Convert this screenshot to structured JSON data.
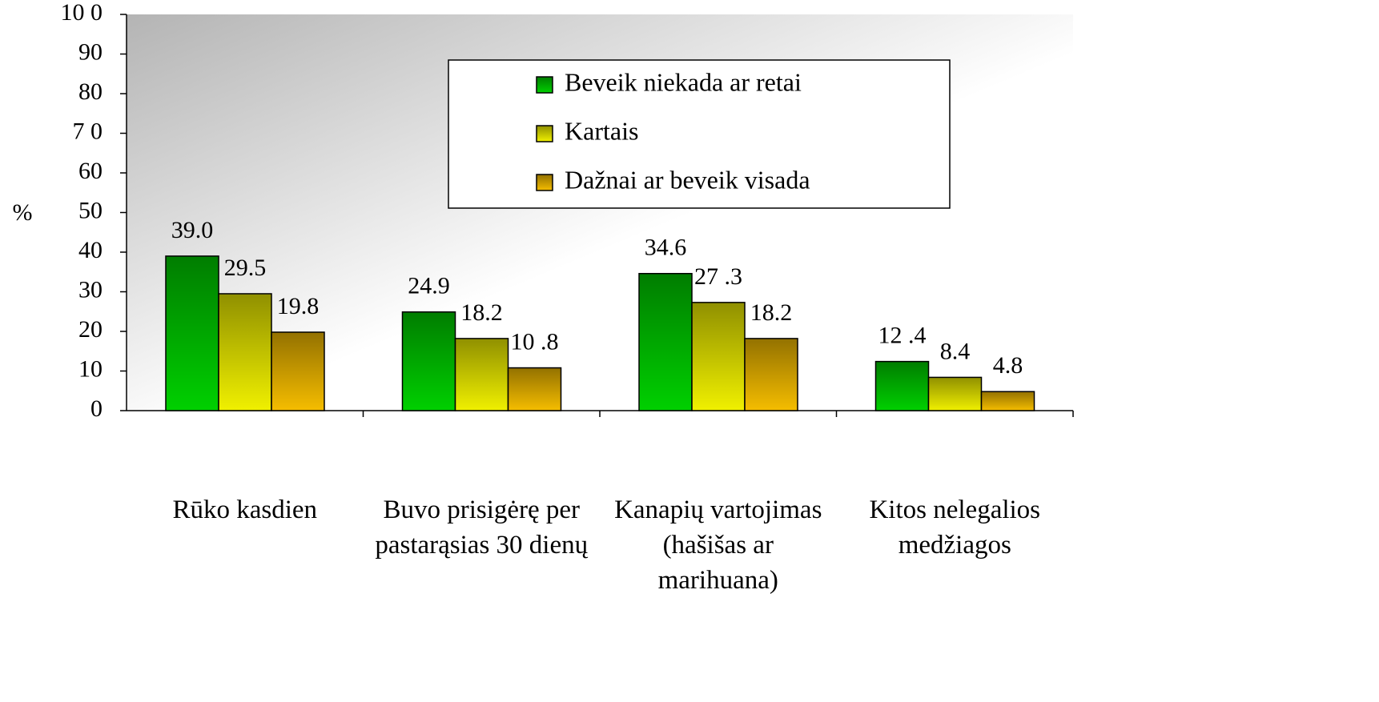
{
  "chart_data": {
    "type": "bar",
    "y_label": "%",
    "categories": [
      "Rūko kasdien",
      "Buvo prisigėrę per pastarąsias 30 dienų",
      "Kanapių vartojimas (hašišas ar marihuana)",
      "Kitos nelegalios medžiagos"
    ],
    "series": [
      {
        "name": "Beveik niekada ar retai",
        "color": "#00d000",
        "values": [
          39.0,
          24.9,
          34.6,
          12.4
        ],
        "value_labels": [
          "39.0",
          "24.9",
          "34.6",
          "12 .4"
        ]
      },
      {
        "name": "Kartais",
        "color": "#f0f000",
        "values": [
          29.5,
          18.2,
          27.3,
          8.4
        ],
        "value_labels": [
          "29.5",
          "18.2",
          "27 .3",
          "8.4"
        ]
      },
      {
        "name": "Dažnai ar beveik visada",
        "color": "#f5bd00",
        "values": [
          19.8,
          10.8,
          18.2,
          4.8
        ],
        "value_labels": [
          "19.8",
          "10 .8",
          "18.2",
          "4.8"
        ]
      }
    ],
    "ylim": [
      0,
      100
    ],
    "yticks": [
      0,
      10,
      20,
      30,
      40,
      50,
      60,
      {
        "value": 70,
        "label": "7 0"
      },
      80,
      90,
      {
        "value": 100,
        "label": "10 0"
      }
    ],
    "legend": "top-center"
  }
}
